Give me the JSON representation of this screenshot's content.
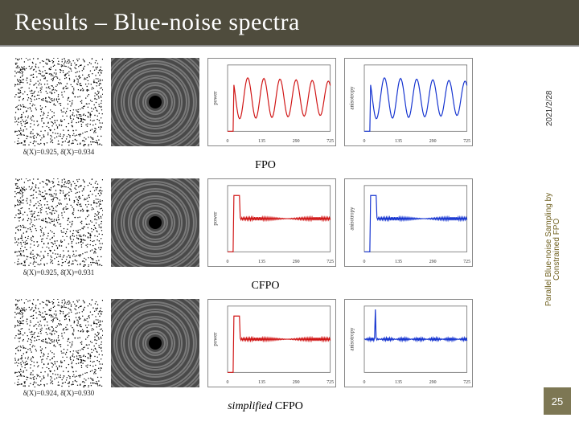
{
  "title": "Results – Blue-noise spectra",
  "title_bar_bg": "#4f4c3d",
  "title_color": "#ffffff",
  "page_number": "25",
  "page_number_bg": "#7d7754",
  "right_date": "2021/2/28",
  "right_ref_line1": "Parallel Blue-noise Sampling by",
  "right_ref_line2": "Constrained FPO",
  "right_ref_color": "#6f601f",
  "rows": [
    {
      "label_html": "FPO",
      "delta_text": "δ(X)=0.925, δ̄(X)=0.934",
      "power_color": "#d01414",
      "aniso_color": "#1433d0",
      "power_curve": "oscillating",
      "aniso_curve": "oscillating"
    },
    {
      "label_html": "CFPO",
      "delta_text": "δ(X)=0.925, δ̄(X)=0.931",
      "power_color": "#d01414",
      "aniso_color": "#1433d0",
      "power_curve": "flat",
      "aniso_curve": "flat"
    },
    {
      "label_html": "<em>simplified</em> CFPO",
      "delta_text": "δ(X)=0.924, δ̄(X)=0.930",
      "power_color": "#d01414",
      "aniso_color": "#1433d0",
      "power_curve": "flat",
      "aniso_curve": "flat_spike"
    }
  ],
  "mini_plot": {
    "bg": "#ffffff",
    "frame": "#6a6a6a",
    "xlim": [
      0,
      726
    ],
    "ylim_power": [
      0,
      3.2
    ],
    "ylim_aniso": [
      -14,
      14
    ],
    "xticks": [
      "0",
      "135",
      "290",
      "725"
    ],
    "line_width": 1.2,
    "ylabel_power": "power",
    "ylabel_aniso": "anisotropy"
  },
  "noise_panel": {
    "bg": "#808080",
    "dot_color": "#000000",
    "size": 110
  },
  "spectrum_panel": {
    "center": "#000000",
    "ring": "#9a9a9a",
    "outer": "#505050",
    "size": 110
  }
}
